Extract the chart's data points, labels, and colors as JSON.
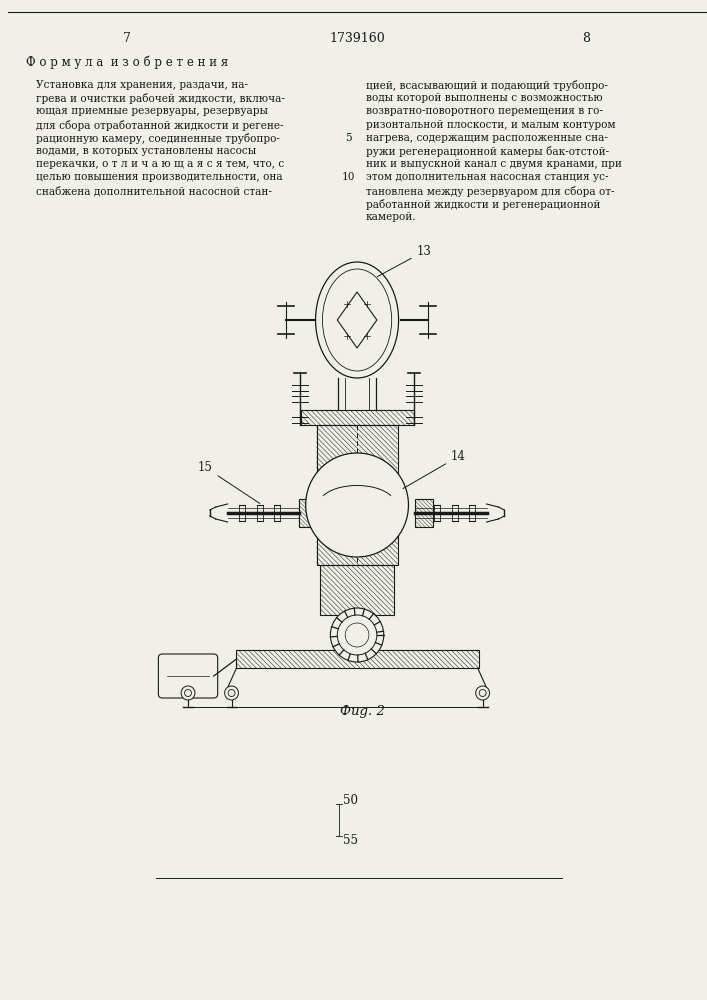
{
  "page_number_left": "7",
  "patent_number": "1739160",
  "page_number_right": "8",
  "section_title": "Ф о р м у л а  и з о б р е т е н и я",
  "left_column_text": [
    "Установка для хранения, раздачи, на-",
    "грева и очистки рабочей жидкости, включа-",
    "ющая приемные резервуары, резервуары",
    "для сбора отработанной жидкости и регене-",
    "рационную камеру, соединенные трубопро-",
    "водами, в которых установлены насосы",
    "перекачки, о т л и ч а ю щ а я с я тем, что, с",
    "целью повышения производительности, она",
    "снабжена дополнительной насосной стан-"
  ],
  "left_line_numbers": [
    null,
    null,
    null,
    null,
    "5",
    null,
    null,
    null,
    null
  ],
  "right_column_text": [
    "цией, всасывающий и подающий трубопро-",
    "воды которой выполнены с возможностью",
    "возвратно-поворотного перемещения в го-",
    "ризонтальной плоскости, и малым контуром",
    "нагрева, содержащим расположенные сна-",
    "ружи регенерационной камеры бак-отстой-",
    "ник и выпускной канал с двумя кранами, при",
    "этом дополнительная насосная станция ус-",
    "тановлена между резервуаром для сбора от-",
    "работанной жидкости и регенерационной",
    "камерой."
  ],
  "right_line_numbers": [
    null,
    null,
    null,
    null,
    null,
    null,
    null,
    "10",
    null,
    null,
    null
  ],
  "fig_caption": "Фиg. 2",
  "label_13": "13",
  "label_14": "14",
  "label_15": "15",
  "label_50": "50",
  "label_55": "55",
  "bg_color": "#f0efe8",
  "line_color": "#1a1a1a",
  "text_color": "#1a1a1a"
}
